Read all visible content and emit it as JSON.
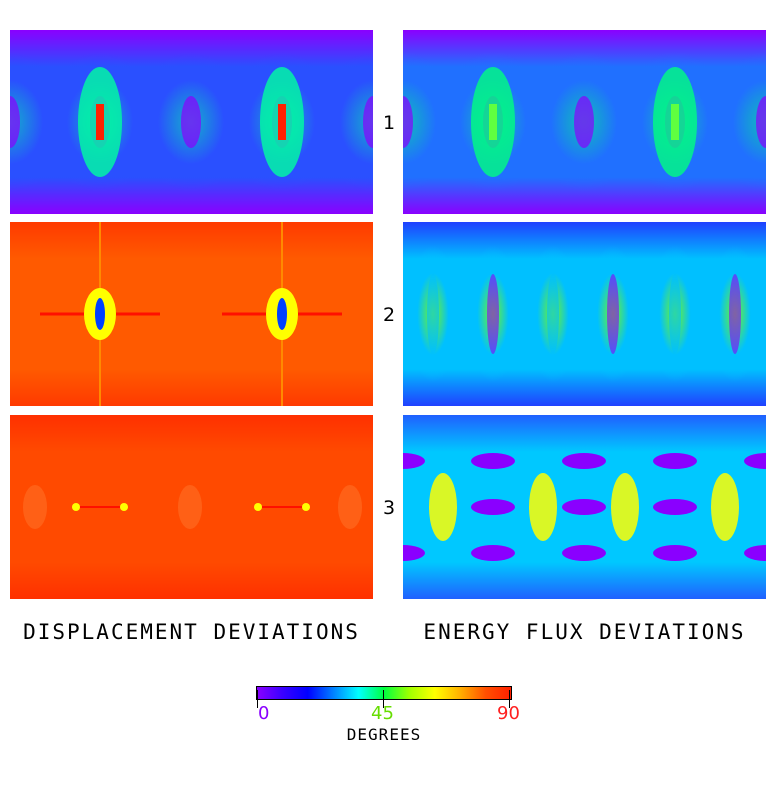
{
  "columns": {
    "left_title": "DISPLACEMENT DEVIATIONS",
    "right_title": "ENERGY FLUX DEVIATIONS"
  },
  "rows": [
    {
      "label": "1"
    },
    {
      "label": "2"
    },
    {
      "label": "3"
    }
  ],
  "colorbar": {
    "title": "DEGREES",
    "ticks": [
      {
        "label": "0",
        "value": 0,
        "color": "#8a00ff"
      },
      {
        "label": "45",
        "value": 45,
        "color": "#66dd00"
      },
      {
        "label": "90",
        "value": 90,
        "color": "#ff2020"
      }
    ],
    "min": 0,
    "max": 90,
    "stops": [
      "#8a00ff",
      "#3a00ff",
      "#0000ff",
      "#0080ff",
      "#00ffff",
      "#00ff40",
      "#a0ff00",
      "#ffff00",
      "#ffb000",
      "#ff5000",
      "#ff2000"
    ]
  },
  "panels": [
    {
      "name": "displacement-map-1",
      "base": "#8a00ff",
      "mid": "#2a50ff",
      "hot": "#00ffa0",
      "core": "#ff2000",
      "pattern": "cells"
    },
    {
      "name": "energy-flux-map-1",
      "base": "#8a00ff",
      "mid": "#2070ff",
      "hot": "#00ff80",
      "core": "#60ff40",
      "pattern": "cells"
    },
    {
      "name": "displacement-map-2",
      "base": "#ff3a00",
      "mid": "#ff5a00",
      "hot": "#ffff00",
      "core": "#0040ff",
      "pattern": "lines"
    },
    {
      "name": "energy-flux-map-2",
      "base": "#2040ff",
      "mid": "#00c0ff",
      "hot": "#80ff00",
      "core": "#8a00ff",
      "pattern": "lobes"
    },
    {
      "name": "displacement-map-3",
      "base": "#ff3000",
      "mid": "#ff4a00",
      "hot": "#ffff00",
      "core": "#ff6000",
      "pattern": "dashes"
    },
    {
      "name": "energy-flux-map-3",
      "base": "#2060ff",
      "mid": "#00c8ff",
      "hot": "#ffff00",
      "core": "#8a00ff",
      "pattern": "ovals"
    }
  ]
}
